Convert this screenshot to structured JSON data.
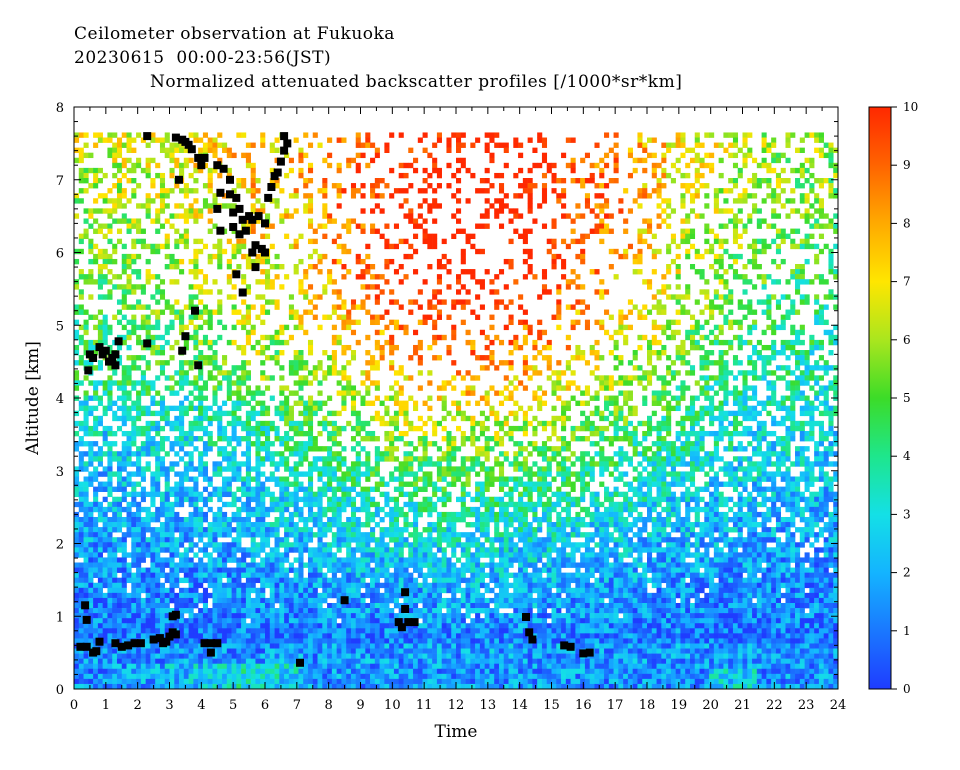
{
  "title": {
    "line1": "Ceilometer observation at Fukuoka",
    "line2": "20230615  00:00-23:56(JST)",
    "line3": "Normalized attenuated backscatter profiles [/1000*sr*km]"
  },
  "chart_data": {
    "type": "heatmap",
    "xlabel": "Time",
    "ylabel": "Altitude [km]",
    "xlim": [
      0,
      24
    ],
    "ylim": [
      0,
      8
    ],
    "data_top_km": 7.65,
    "x_ticks": [
      "0",
      "1",
      "2",
      "3",
      "4",
      "5",
      "6",
      "7",
      "8",
      "9",
      "10",
      "11",
      "12",
      "13",
      "14",
      "15",
      "16",
      "17",
      "18",
      "19",
      "20",
      "21",
      "22",
      "23",
      "24"
    ],
    "y_ticks": [
      "0",
      "1",
      "2",
      "3",
      "4",
      "5",
      "6",
      "7",
      "8"
    ],
    "colorbar": {
      "range": [
        0,
        10
      ],
      "ticks": [
        "0",
        "1",
        "2",
        "3",
        "4",
        "5",
        "6",
        "7",
        "8",
        "9",
        "10"
      ],
      "colors": [
        "#1f3cff",
        "#1a78ff",
        "#14b4ff",
        "#14e0e6",
        "#1ee68c",
        "#3cdc28",
        "#aae61e",
        "#ffe600",
        "#ffaa00",
        "#ff6400",
        "#ff2800"
      ]
    },
    "cloud_base_points": [
      [
        0.2,
        0.58
      ],
      [
        0.4,
        0.58
      ],
      [
        0.6,
        0.5
      ],
      [
        0.7,
        0.52
      ],
      [
        0.8,
        0.65
      ],
      [
        0.35,
        1.15
      ],
      [
        0.4,
        0.95
      ],
      [
        1.3,
        0.63
      ],
      [
        1.5,
        0.58
      ],
      [
        1.7,
        0.6
      ],
      [
        1.9,
        0.63
      ],
      [
        2.1,
        0.63
      ],
      [
        2.5,
        0.68
      ],
      [
        2.7,
        0.7
      ],
      [
        2.8,
        0.63
      ],
      [
        2.9,
        0.65
      ],
      [
        3.0,
        0.72
      ],
      [
        3.1,
        0.78
      ],
      [
        3.2,
        0.75
      ],
      [
        3.1,
        1.0
      ],
      [
        3.2,
        1.02
      ],
      [
        4.1,
        0.63
      ],
      [
        4.3,
        0.63
      ],
      [
        4.5,
        0.63
      ],
      [
        4.3,
        0.5
      ],
      [
        7.1,
        0.36
      ],
      [
        8.5,
        1.22
      ],
      [
        10.2,
        0.92
      ],
      [
        10.3,
        0.85
      ],
      [
        10.5,
        0.92
      ],
      [
        10.7,
        0.92
      ],
      [
        10.4,
        1.1
      ],
      [
        10.4,
        1.33
      ],
      [
        14.2,
        0.99
      ],
      [
        14.3,
        0.78
      ],
      [
        14.4,
        0.68
      ],
      [
        15.4,
        0.6
      ],
      [
        15.6,
        0.58
      ],
      [
        16.0,
        0.49
      ],
      [
        16.2,
        0.5
      ],
      [
        0.5,
        4.6
      ],
      [
        0.6,
        4.55
      ],
      [
        0.8,
        4.7
      ],
      [
        0.9,
        4.6
      ],
      [
        1.0,
        4.65
      ],
      [
        1.1,
        4.5
      ],
      [
        1.2,
        4.55
      ],
      [
        1.3,
        4.6
      ],
      [
        1.4,
        4.78
      ],
      [
        0.45,
        4.38
      ],
      [
        1.3,
        4.45
      ],
      [
        2.3,
        4.75
      ],
      [
        3.4,
        4.65
      ],
      [
        3.5,
        4.85
      ],
      [
        3.8,
        5.2
      ],
      [
        3.9,
        4.45
      ],
      [
        2.3,
        7.6
      ],
      [
        3.2,
        7.58
      ],
      [
        3.4,
        7.55
      ],
      [
        3.5,
        7.52
      ],
      [
        3.6,
        7.48
      ],
      [
        3.7,
        7.42
      ],
      [
        3.9,
        7.3
      ],
      [
        4.0,
        7.2
      ],
      [
        4.1,
        7.3
      ],
      [
        3.3,
        7.0
      ],
      [
        4.5,
        7.2
      ],
      [
        4.7,
        7.15
      ],
      [
        4.9,
        7.0
      ],
      [
        4.6,
        6.82
      ],
      [
        4.9,
        6.8
      ],
      [
        5.1,
        6.75
      ],
      [
        4.5,
        6.6
      ],
      [
        5.0,
        6.55
      ],
      [
        5.2,
        6.6
      ],
      [
        5.3,
        6.45
      ],
      [
        5.5,
        6.5
      ],
      [
        4.6,
        6.3
      ],
      [
        5.0,
        6.35
      ],
      [
        5.2,
        6.25
      ],
      [
        5.4,
        6.3
      ],
      [
        5.6,
        6.45
      ],
      [
        5.8,
        6.5
      ],
      [
        6.0,
        6.4
      ],
      [
        5.7,
        6.1
      ],
      [
        5.9,
        6.05
      ],
      [
        6.0,
        6.0
      ],
      [
        5.6,
        6.0
      ],
      [
        5.7,
        5.8
      ],
      [
        5.1,
        5.7
      ],
      [
        5.3,
        5.45
      ],
      [
        6.1,
        6.75
      ],
      [
        6.2,
        6.9
      ],
      [
        6.3,
        7.05
      ],
      [
        6.4,
        7.1
      ],
      [
        6.5,
        7.25
      ],
      [
        6.6,
        7.4
      ],
      [
        6.7,
        7.5
      ],
      [
        6.6,
        7.6
      ]
    ]
  }
}
